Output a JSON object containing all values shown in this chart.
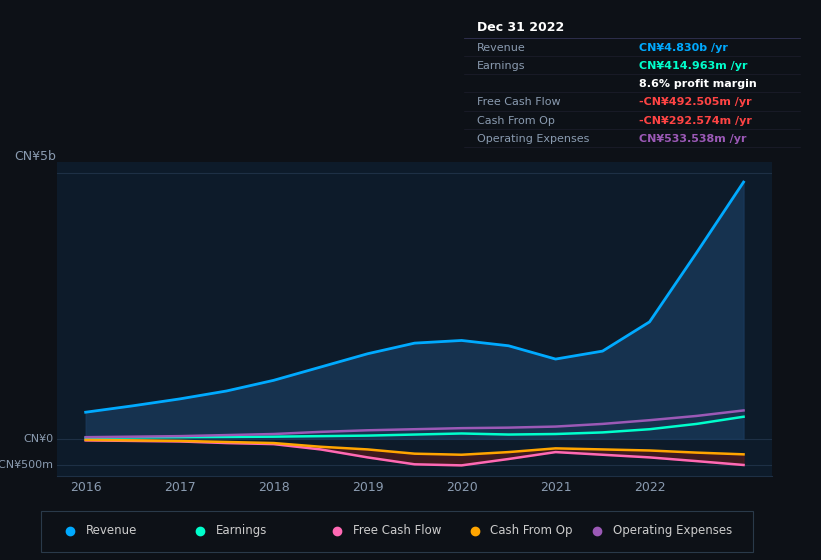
{
  "bg_color": "#0d1117",
  "plot_bg_color": "#0d1b2a",
  "grid_color": "#1e3045",
  "text_color": "#8a9bb0",
  "title_color": "#ffffff",
  "years": [
    2016,
    2016.5,
    2017,
    2017.5,
    2018,
    2018.5,
    2019,
    2019.5,
    2020,
    2020.5,
    2021,
    2021.5,
    2022,
    2022.5,
    2023.0
  ],
  "revenue": [
    500,
    620,
    750,
    900,
    1100,
    1350,
    1600,
    1800,
    1850,
    1750,
    1500,
    1650,
    2200,
    3500,
    4830
  ],
  "earnings": [
    20,
    25,
    30,
    35,
    40,
    50,
    60,
    80,
    100,
    80,
    90,
    120,
    180,
    280,
    414.963
  ],
  "free_cash_flow": [
    -30,
    -40,
    -50,
    -80,
    -100,
    -200,
    -350,
    -480,
    -500,
    -380,
    -250,
    -300,
    -350,
    -420,
    -492.505
  ],
  "cash_from_op": [
    -20,
    -30,
    -40,
    -60,
    -80,
    -150,
    -200,
    -280,
    -300,
    -250,
    -180,
    -200,
    -220,
    -260,
    -292.574
  ],
  "operating_exp": [
    30,
    40,
    50,
    70,
    90,
    130,
    160,
    180,
    200,
    210,
    230,
    280,
    350,
    430,
    533.538
  ],
  "revenue_color": "#00aaff",
  "earnings_color": "#00ffcc",
  "free_cash_flow_color": "#ff69b4",
  "cash_from_op_color": "#ffa500",
  "operating_exp_color": "#9b59b6",
  "revenue_fill_color": "#1a3a5c",
  "ylim_min": -700,
  "ylim_max": 5200,
  "ytick_positions": [
    0,
    -500,
    5000
  ],
  "xtick_labels": [
    "2016",
    "2017",
    "2018",
    "2019",
    "2020",
    "2021",
    "2022"
  ],
  "xtick_positions": [
    2016,
    2017,
    2018,
    2019,
    2020,
    2021,
    2022
  ],
  "ylabel_text": "CN¥5b",
  "info_box": {
    "title": "Dec 31 2022",
    "rows": [
      {
        "label": "Revenue",
        "value": "CN¥4.830b /yr",
        "value_color": "#00aaff"
      },
      {
        "label": "Earnings",
        "value": "CN¥414.963m /yr",
        "value_color": "#00ffcc"
      },
      {
        "label": "",
        "value": "8.6% profit margin",
        "value_color": "#ffffff"
      },
      {
        "label": "Free Cash Flow",
        "value": "-CN¥492.505m /yr",
        "value_color": "#ff4444"
      },
      {
        "label": "Cash From Op",
        "value": "-CN¥292.574m /yr",
        "value_color": "#ff4444"
      },
      {
        "label": "Operating Expenses",
        "value": "CN¥533.538m /yr",
        "value_color": "#9b59b6"
      }
    ]
  },
  "legend_entries": [
    {
      "label": "Revenue",
      "color": "#00aaff"
    },
    {
      "label": "Earnings",
      "color": "#00ffcc"
    },
    {
      "label": "Free Cash Flow",
      "color": "#ff69b4"
    },
    {
      "label": "Cash From Op",
      "color": "#ffa500"
    },
    {
      "label": "Operating Expenses",
      "color": "#9b59b6"
    }
  ]
}
